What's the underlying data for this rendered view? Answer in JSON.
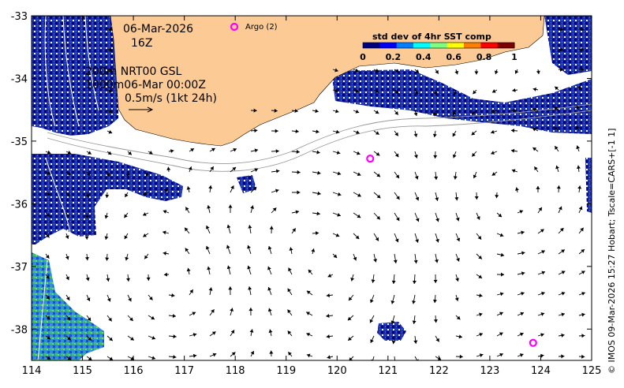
{
  "map": {
    "date": "06-Mar-2026",
    "hour": "16Z",
    "line1": "200m  NRT00 GSL",
    "line2": "1000m06-Mar 00:00Z",
    "scale_label": "0.5m/s (1kt 24h)",
    "argo_label": "Argo (2)",
    "colorbar": {
      "title": "std dev of 4hr SST comp",
      "ticks": [
        "0",
        "0.2",
        "0.4",
        "0.6",
        "0.8",
        "1"
      ],
      "colors": [
        "#00007f",
        "#0000ff",
        "#007fff",
        "#00ffff",
        "#7fff7f",
        "#ffff00",
        "#ff7f00",
        "#ff0000",
        "#7f0000"
      ]
    },
    "credit": "© IMOS 09-Mar-2026 15:27 Hobart; Tscale=CARS+[-1 1]",
    "x_ticks": [
      "114",
      "115",
      "116",
      "117",
      "118",
      "119",
      "120",
      "121",
      "122",
      "123",
      "124",
      "125"
    ],
    "y_ticks": [
      "-33",
      "-34",
      "-35",
      "-36",
      "-37",
      "-38"
    ],
    "colors": {
      "land": "#fcca94",
      "argo": "#ff00ff",
      "sst_deep": "#00007f",
      "sst_mid": "#0000ff"
    }
  },
  "chart_data": {
    "type": "map",
    "xlim": [
      114,
      125
    ],
    "ylim": [
      -38.5,
      -33
    ],
    "argo_floats": [
      {
        "lon": 120.65,
        "lat": -35.28
      },
      {
        "lon": 123.85,
        "lat": -38.22
      }
    ]
  }
}
